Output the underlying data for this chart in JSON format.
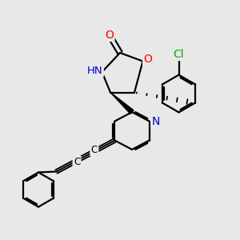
{
  "bg_color": "#e8e8e8",
  "bond_color": "#000000",
  "bond_width": 1.6,
  "atom_colors": {
    "O": "#ff0000",
    "N": "#0000cc",
    "Cl": "#00aa00",
    "C": "#000000",
    "H": "#606060"
  },
  "figsize": [
    3.0,
    3.0
  ],
  "dpi": 100,
  "xlim": [
    0,
    10
  ],
  "ylim": [
    0,
    10
  ]
}
